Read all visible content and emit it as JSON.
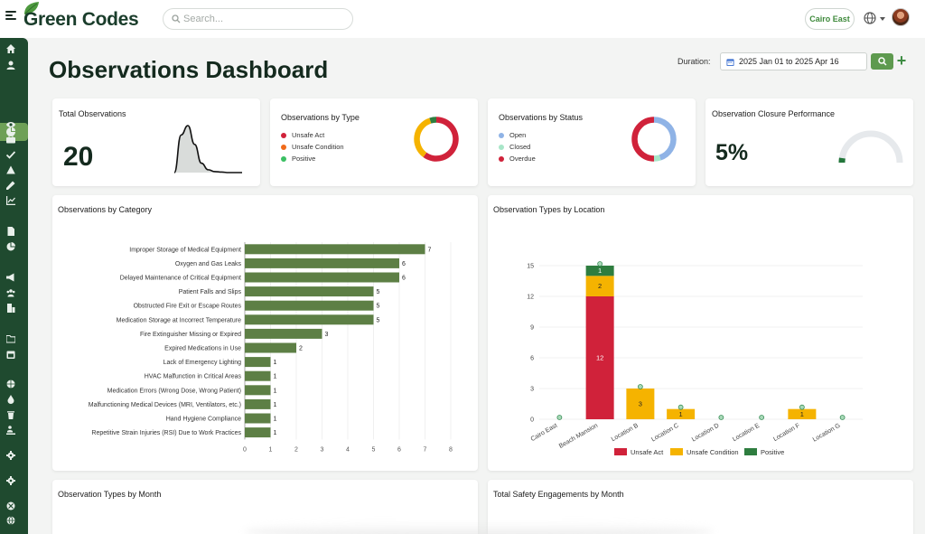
{
  "app": {
    "name": "Green Codes"
  },
  "search": {
    "placeholder": "Search..."
  },
  "header": {
    "site": "Cairo East"
  },
  "page": {
    "title": "Observations Dashboard"
  },
  "filters": {
    "duration_label": "Duration:",
    "date_range": "2025 Jan 01 to 2025 Apr 16"
  },
  "colors": {
    "primary": "#1f4a2f",
    "accent": "#5e9a4f",
    "bar_green": "#5d7f45",
    "unsafe_act": "#d0223a",
    "unsafe_condition": "#f5b300",
    "positive": "#2e7d3f",
    "open": "#8fb3e6",
    "closed": "#a8e6c8"
  },
  "sidebar": {
    "icons": [
      "home-icon",
      "user-icon",
      "dashboard-icon",
      "eye-icon",
      "briefcase-icon",
      "check-icon",
      "warning-icon",
      "eyedropper-icon",
      "chart-icon",
      "document-icon",
      "pie-icon",
      "megaphone-icon",
      "group-icon",
      "building-icon",
      "folder-icon",
      "calendar-icon",
      "globe-icon",
      "drop-icon",
      "trash-icon",
      "person-icon",
      "gear-icon",
      "settings-icon",
      "target-icon",
      "world-icon"
    ]
  },
  "cards": {
    "total": {
      "title": "Total Observations",
      "value": "20"
    },
    "by_type": {
      "title": "Observations by Type",
      "legend": [
        "Unsafe Act",
        "Unsafe Condition",
        "Positive"
      ]
    },
    "by_status": {
      "title": "Observations by Status",
      "legend": [
        "Open",
        "Closed",
        "Overdue"
      ]
    },
    "closure": {
      "title": "Observation Closure Performance",
      "value": "5%",
      "gauge_fraction": 0.05
    },
    "by_category": {
      "title": "Observations by Category"
    },
    "by_location": {
      "title": "Observation Types by Location"
    },
    "by_month": {
      "title": "Observation Types by Month"
    },
    "engagements": {
      "title": "Total Safety Engagements by Month"
    }
  },
  "chart_data": [
    {
      "type": "pie",
      "title": "Observations by Type",
      "categories": [
        "Unsafe Act",
        "Unsafe Condition",
        "Positive"
      ],
      "values": [
        12,
        7,
        1
      ]
    },
    {
      "type": "pie",
      "title": "Observations by Status",
      "categories": [
        "Open",
        "Closed",
        "Overdue"
      ],
      "values": [
        9,
        1,
        10
      ]
    },
    {
      "type": "bar",
      "orientation": "horizontal",
      "title": "Observations by Category",
      "categories": [
        "Improper Storage of Medical Equipment",
        "Oxygen and Gas Leaks",
        "Delayed Maintenance of Critical Equipment",
        "Patient Falls and Slips",
        "Obstructed Fire Exit or Escape Routes",
        "Medication Storage at Incorrect Temperature",
        "Fire Extinguisher Missing or Expired",
        "Expired Medications in Use",
        "Lack of Emergency Lighting",
        "HVAC Malfunction in Critical Areas",
        "Medication Errors (Wrong Dose, Wrong Patient)",
        "Malfunctioning Medical Devices (MRI, Ventilators, etc.)",
        "Hand Hygiene Compliance",
        "Repetitive Strain Injuries (RSI) Due to Work Practices"
      ],
      "values": [
        7,
        6,
        6,
        5,
        5,
        5,
        3,
        2,
        1,
        1,
        1,
        1,
        1,
        1
      ],
      "xlim": [
        0,
        8
      ],
      "xticks": [
        "0",
        "1",
        "2",
        "3",
        "4",
        "5",
        "6",
        "7",
        "8"
      ],
      "grid": true
    },
    {
      "type": "bar",
      "stacked": true,
      "title": "Observation Types by Location",
      "categories": [
        "Cairo East",
        "Beach Mansion",
        "Location B",
        "Location C",
        "Location D",
        "Location E",
        "Location F",
        "Location G"
      ],
      "series": [
        {
          "name": "Unsafe Act",
          "values": [
            0,
            12,
            0,
            0,
            0,
            0,
            0,
            0
          ]
        },
        {
          "name": "Unsafe Condition",
          "values": [
            0,
            2,
            3,
            1,
            0,
            0,
            1,
            0
          ]
        },
        {
          "name": "Positive",
          "values": [
            0,
            1,
            0,
            0,
            0,
            0,
            0,
            0
          ]
        }
      ],
      "ylim": [
        0,
        15
      ],
      "yticks": [
        "0",
        "3",
        "6",
        "9",
        "12",
        "15"
      ],
      "legend": "bottom",
      "grid": true
    },
    {
      "type": "line",
      "title": "Total Observations",
      "x": [
        0,
        1,
        2,
        3,
        4,
        5,
        6,
        7,
        8,
        9,
        10
      ],
      "values": [
        0,
        8,
        10,
        6,
        2,
        0.6,
        0.2,
        0.1,
        0,
        0,
        0
      ]
    }
  ]
}
